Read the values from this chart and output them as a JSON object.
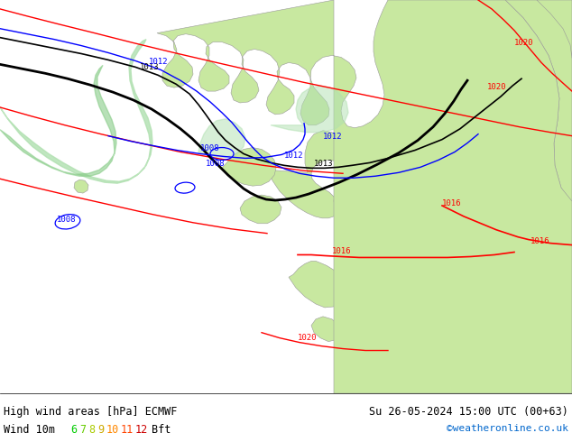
{
  "figsize": [
    6.34,
    4.9
  ],
  "dpi": 100,
  "sea_color": "#d8d8d8",
  "land_color": "#c8e8a0",
  "land_edge": "#999999",
  "wind_shade_light": "#b8e8b8",
  "wind_shade_mid": "#90d890",
  "bottom_bg": "#ffffff",
  "title_left": "High wind areas [hPa] ECMWF",
  "title_right": "Su 26-05-2024 15:00 UTC (00+63)",
  "wind_label": "Wind 10m",
  "bft_label": "Bft",
  "copyright": "©weatheronline.co.uk",
  "bft_colors": [
    "#00cc00",
    "#66cc00",
    "#aacc00",
    "#ccaa00",
    "#ff8800",
    "#ff4400",
    "#cc0000"
  ],
  "bft_values": [
    "6",
    "7",
    "8",
    "9",
    "10",
    "11",
    "12"
  ]
}
